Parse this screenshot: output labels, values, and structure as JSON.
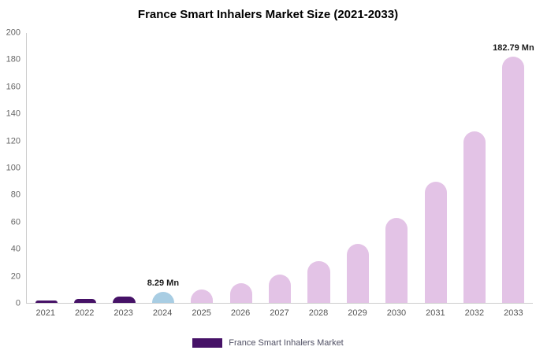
{
  "title": "France Smart Inhalers Market Size (2021-2033)",
  "legend": {
    "label": "France Smart Inhalers Market",
    "swatch_color": "#461267"
  },
  "colors": {
    "dark_purple": "#461267",
    "light_blue": "#a8cde3",
    "plum": "#e3c3e6",
    "axis_line": "#cccccc"
  },
  "chart_data": {
    "type": "bar",
    "title": "France Smart Inhalers Market Size (2021-2033)",
    "categories": [
      "2021",
      "2022",
      "2023",
      "2024",
      "2025",
      "2026",
      "2027",
      "2028",
      "2029",
      "2030",
      "2031",
      "2032",
      "2033"
    ],
    "values": [
      2,
      3,
      4.5,
      8.29,
      10,
      14.5,
      21,
      31,
      44,
      63,
      90,
      127,
      182.79
    ],
    "bar_colors": [
      "#461267",
      "#461267",
      "#461267",
      "#a8cde3",
      "#e3c3e6",
      "#e3c3e6",
      "#e3c3e6",
      "#e3c3e6",
      "#e3c3e6",
      "#e3c3e6",
      "#e3c3e6",
      "#e3c3e6",
      "#e3c3e6"
    ],
    "annotations": [
      {
        "index": 3,
        "text": "8.29 Mn"
      },
      {
        "index": 12,
        "text": "182.79 Mn"
      }
    ],
    "xlabel": "",
    "ylabel": "",
    "ylim": [
      0,
      200
    ],
    "yticks": [
      0,
      20,
      40,
      60,
      80,
      100,
      120,
      140,
      160,
      180,
      200
    ],
    "grid": false,
    "legend_entries": [
      "France Smart Inhalers Market"
    ],
    "legend_position": "bottom",
    "unit": "Mn"
  }
}
